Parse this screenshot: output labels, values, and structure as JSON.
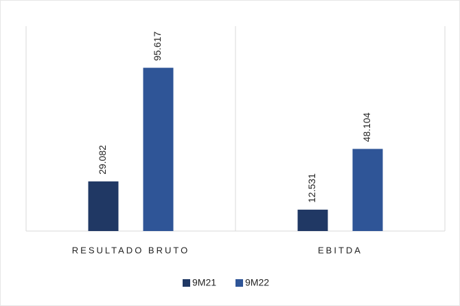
{
  "chart_data": {
    "type": "bar",
    "categories": [
      "RESULTADO BRUTO",
      "EBITDA"
    ],
    "series": [
      {
        "name": "9M21",
        "color": "#203864",
        "values": [
          29082,
          12531
        ],
        "value_labels": [
          "29.082",
          "12.531"
        ]
      },
      {
        "name": "9M22",
        "color": "#2f5597",
        "values": [
          95617,
          48104
        ],
        "value_labels": [
          "95.617",
          "48.104"
        ]
      }
    ],
    "ylim": [
      0,
      120000
    ]
  }
}
